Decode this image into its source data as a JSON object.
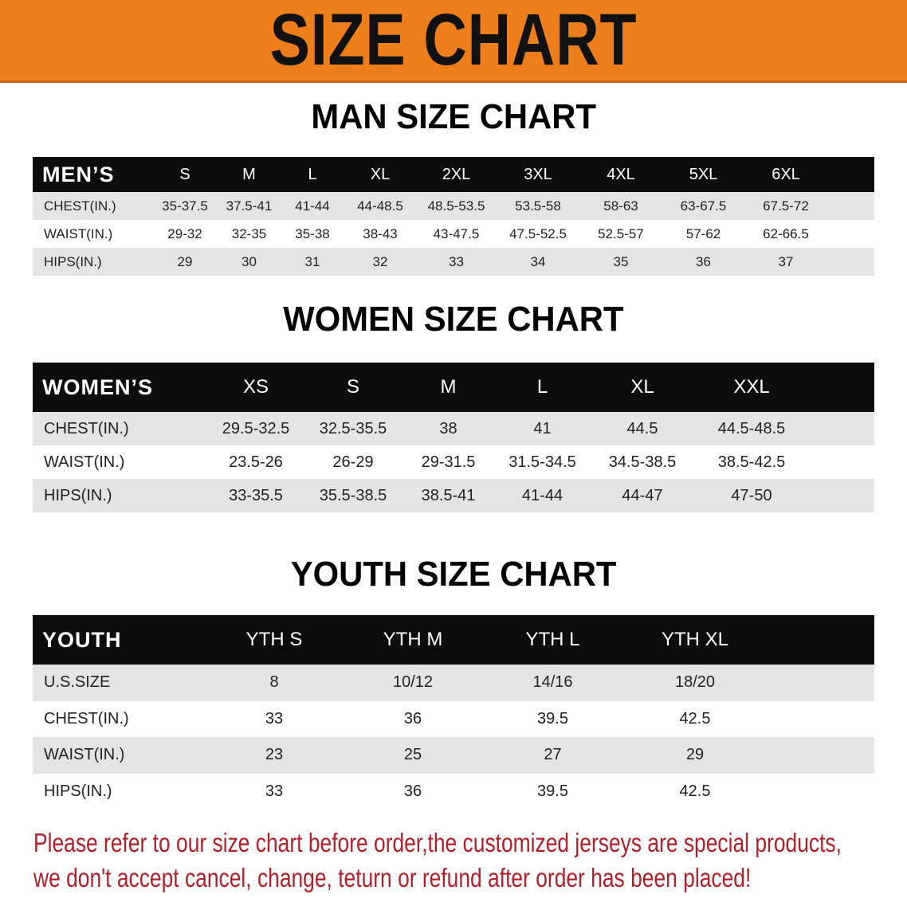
{
  "banner": "SIZE CHART",
  "men": {
    "title": "MAN SIZE CHART",
    "header": "MEN’S",
    "sizes": [
      "S",
      "M",
      "L",
      "XL",
      "2XL",
      "3XL",
      "4XL",
      "5XL",
      "6XL"
    ],
    "rows": [
      {
        "label": "CHEST(IN.)",
        "values": [
          "35-37.5",
          "37.5-41",
          "41-44",
          "44-48.5",
          "48.5-53.5",
          "53.5-58",
          "58-63",
          "63-67.5",
          "67.5-72"
        ]
      },
      {
        "label": "WAIST(IN.)",
        "values": [
          "29-32",
          "32-35",
          "35-38",
          "38-43",
          "43-47.5",
          "47.5-52.5",
          "52.5-57",
          "57-62",
          "62-66.5"
        ]
      },
      {
        "label": "HIPS(IN.)",
        "values": [
          "29",
          "30",
          "31",
          "32",
          "33",
          "34",
          "35",
          "36",
          "37"
        ]
      }
    ]
  },
  "women": {
    "title": "WOMEN SIZE CHART",
    "header": "WOMEN’S",
    "sizes": [
      "XS",
      "S",
      "M",
      "L",
      "XL",
      "XXL"
    ],
    "rows": [
      {
        "label": "CHEST(IN.)",
        "values": [
          "29.5-32.5",
          "32.5-35.5",
          "38",
          "41",
          "44.5",
          "44.5-48.5"
        ]
      },
      {
        "label": "WAIST(IN.)",
        "values": [
          "23.5-26",
          "26-29",
          "29-31.5",
          "31.5-34.5",
          "34.5-38.5",
          "38.5-42.5"
        ]
      },
      {
        "label": "HIPS(IN.)",
        "values": [
          "33-35.5",
          "35.5-38.5",
          "38.5-41",
          "41-44",
          "44-47",
          "47-50"
        ]
      }
    ]
  },
  "youth": {
    "title": "YOUTH SIZE CHART",
    "header": "YOUTH",
    "sizes": [
      "YTH S",
      "YTH M",
      "YTH L",
      "YTH XL"
    ],
    "rows": [
      {
        "label": "U.S.SIZE",
        "values": [
          "8",
          "10/12",
          "14/16",
          "18/20"
        ]
      },
      {
        "label": "CHEST(IN.)",
        "values": [
          "33",
          "36",
          "39.5",
          "42.5"
        ]
      },
      {
        "label": "WAIST(IN.)",
        "values": [
          "23",
          "25",
          "27",
          "29"
        ]
      },
      {
        "label": "HIPS(IN.)",
        "values": [
          "33",
          "36",
          "39.5",
          "42.5"
        ]
      }
    ]
  },
  "notice": [
    "Please refer to our size chart before order,the customized jerseys are special products,",
    "we don't accept cancel, change, teturn or refund after order has been placed!"
  ],
  "colors": {
    "banner": "#ec7f1c",
    "header": "#0d0d0d",
    "notice": "#b3202a"
  }
}
